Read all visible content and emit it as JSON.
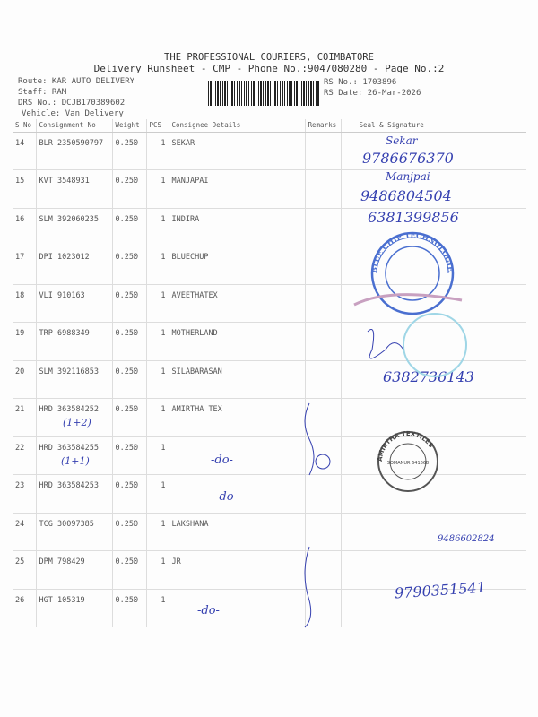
{
  "header": {
    "company": "THE PROFESSIONAL COURIERS, COIMBATORE",
    "subtitle": "Delivery Runsheet - CMP - Phone No.:9047080280 - Page No.:2",
    "route": "Route: KAR AUTO DELIVERY",
    "staff": "Staff: RAM",
    "drs": "DRS No.: DCJB170389602",
    "vehicle": "Vehicle: Van Delivery",
    "rs_no": "RS No.: 1703896",
    "rs_date": "RS Date: 26-Mar-2026"
  },
  "columns": [
    "S No",
    "Consignment No",
    "Weight",
    "PCS",
    "Consignee Details",
    "Remarks",
    "Seal & Signature"
  ],
  "rows": [
    {
      "sno": "14",
      "cons": "BLR 2350590797",
      "wt": "0.250",
      "pcs": "1",
      "name": "SEKAR"
    },
    {
      "sno": "15",
      "cons": "KVT 3548931",
      "wt": "0.250",
      "pcs": "1",
      "name": "MANJAPAI"
    },
    {
      "sno": "16",
      "cons": "SLM 392060235",
      "wt": "0.250",
      "pcs": "1",
      "name": "INDIRA"
    },
    {
      "sno": "17",
      "cons": "DPI 1023012",
      "wt": "0.250",
      "pcs": "1",
      "name": "BLUECHUP"
    },
    {
      "sno": "18",
      "cons": "VLI 910163",
      "wt": "0.250",
      "pcs": "1",
      "name": "AVEETHATEX"
    },
    {
      "sno": "19",
      "cons": "TRP 6988349",
      "wt": "0.250",
      "pcs": "1",
      "name": "MOTHERLAND"
    },
    {
      "sno": "20",
      "cons": "SLM 392116853",
      "wt": "0.250",
      "pcs": "1",
      "name": "SILABARASAN"
    },
    {
      "sno": "21",
      "cons": "HRD 363584252",
      "wt": "0.250",
      "pcs": "1",
      "name": "AMIRTHA TEX"
    },
    {
      "sno": "22",
      "cons": "HRD 363584255",
      "wt": "0.250",
      "pcs": "1",
      "name": ""
    },
    {
      "sno": "23",
      "cons": "HRD 363584253",
      "wt": "0.250",
      "pcs": "1",
      "name": ""
    },
    {
      "sno": "24",
      "cons": "TCG 30097385",
      "wt": "0.250",
      "pcs": "1",
      "name": "LAKSHANA"
    },
    {
      "sno": "25",
      "cons": "DPM 798429",
      "wt": "0.250",
      "pcs": "1",
      "name": "JR"
    },
    {
      "sno": "26",
      "cons": "HGT 105319",
      "wt": "0.250",
      "pcs": "1",
      "name": ""
    }
  ],
  "handwriting": {
    "p1": "9786676370",
    "p2": "9486804504",
    "p3": "6381399856",
    "p4": "6382736143",
    "p5": "9486602824",
    "p6": "9790351541",
    "n1": "(1+2)",
    "n2": "(1+1)",
    "do1": "-do-",
    "do2": "-do-",
    "do3": "-do-"
  },
  "stamps": {
    "s1": "BLUE CHIP TECHNOLOGIES",
    "s2": "AMIRTHA TEXTILES",
    "s2b": "SOMANUR 641668"
  },
  "colors": {
    "ink": "#3540b0",
    "stamp": "#4a6fd0"
  }
}
